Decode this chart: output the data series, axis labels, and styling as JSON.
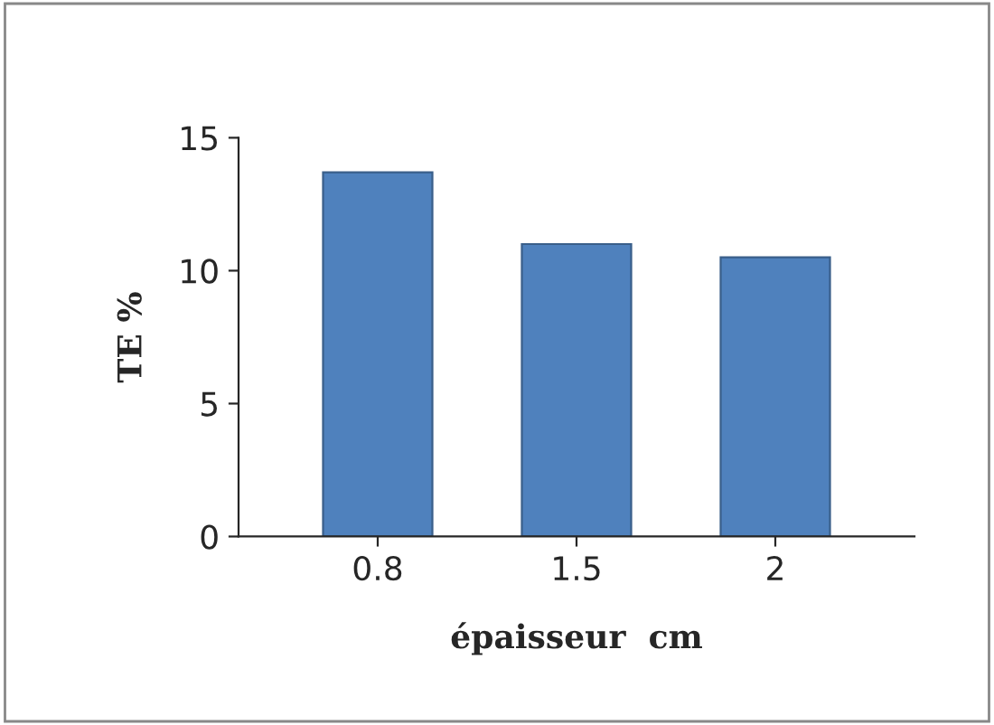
{
  "chart_data": {
    "type": "bar",
    "xlabel": "épaisseur  cm",
    "ylabel": "TE %",
    "categories": [
      "0.8",
      "1.5",
      "2"
    ],
    "series": [
      {
        "color": "#4f81bd",
        "values": [
          13.7,
          11,
          10.5
        ]
      }
    ],
    "ylim": [
      0,
      15
    ],
    "yticks": [
      0,
      5,
      10,
      15
    ],
    "grid": false,
    "legend": false
  }
}
